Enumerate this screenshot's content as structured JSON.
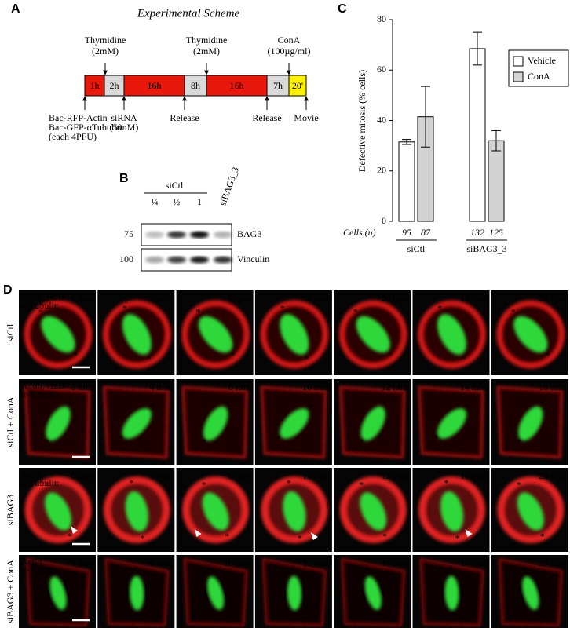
{
  "panels": {
    "A": {
      "label": "A",
      "title": "Experimental Scheme",
      "segments": [
        "1h",
        "2h",
        "16h",
        "8h",
        "16h",
        "7h",
        "20'"
      ],
      "above": [
        {
          "lines": [
            "Thymidine",
            "(2mM)"
          ]
        },
        {
          "lines": [
            "Thymidine",
            "(2mM)"
          ]
        },
        {
          "lines": [
            "ConA",
            "(100µg/ml)"
          ]
        }
      ],
      "below": [
        {
          "lines": [
            "Bac-RFP-Actin",
            "Bac-GFP-αTubulin",
            "(each 4PFU)"
          ]
        },
        {
          "lines": [
            "siRNA",
            "(50nM)"
          ]
        },
        {
          "lines": [
            "Release"
          ]
        },
        {
          "lines": [
            "Release"
          ]
        },
        {
          "lines": [
            "Movie"
          ]
        }
      ]
    },
    "B": {
      "label": "B",
      "group": "siCtl",
      "lanes": [
        "¼",
        "½",
        "1"
      ],
      "extra_lane": "siBAG3_3",
      "blots": [
        {
          "mw": 75,
          "name": "BAG3"
        },
        {
          "mw": 100,
          "name": "Vinculin"
        }
      ]
    },
    "C": {
      "label": "C"
    },
    "D": {
      "label": "D",
      "pole_mark": "*",
      "rows": [
        {
          "name": "siCtl",
          "stain": [
            "Actin, H2B",
            "α-Tubulin"
          ],
          "times": [
            "0 min",
            "4 min",
            "6 min",
            "8 min",
            "20 min",
            "18 min",
            "22 min"
          ]
        },
        {
          "name": "siCtl + ConA",
          "stain": [
            "Actin, H2B",
            "α-Tubulin"
          ],
          "times": [
            "0 min",
            "4 min",
            "8 min",
            "10 min",
            "12 min",
            "14 min",
            "18 min"
          ]
        },
        {
          "name": "siBAG3",
          "stain": [
            "Actin",
            "α-Tubulin"
          ],
          "times": [
            "0 min",
            "4 min",
            "6 min",
            "10 min",
            "12 min",
            "16 min",
            "20 min"
          ]
        },
        {
          "name": "siBAG3 + ConA",
          "stain": [
            "Actin",
            "α-Tubulin"
          ],
          "times": [
            "0 min",
            "6 min",
            "10 min",
            "12 min",
            "14 min",
            "16 min",
            "20 min"
          ]
        }
      ]
    }
  },
  "chart_data": {
    "type": "bar",
    "ylabel": "Defective mitosis (% cells)",
    "categories": [
      "siCtl",
      "siBAG3_3"
    ],
    "series": [
      {
        "name": "Vehicle",
        "color": "#ffffff",
        "values": [
          31.5,
          68.5
        ],
        "errors": [
          1,
          6.5
        ],
        "n": [
          95,
          132
        ]
      },
      {
        "name": "ConA",
        "color": "#d3d3d3",
        "values": [
          41.5,
          32
        ],
        "errors": [
          12,
          4
        ],
        "n": [
          87,
          125
        ]
      }
    ],
    "n_label": "Cells (n)",
    "ylim": [
      0,
      80
    ],
    "yticks": [
      0,
      20,
      40,
      60,
      80
    ]
  }
}
